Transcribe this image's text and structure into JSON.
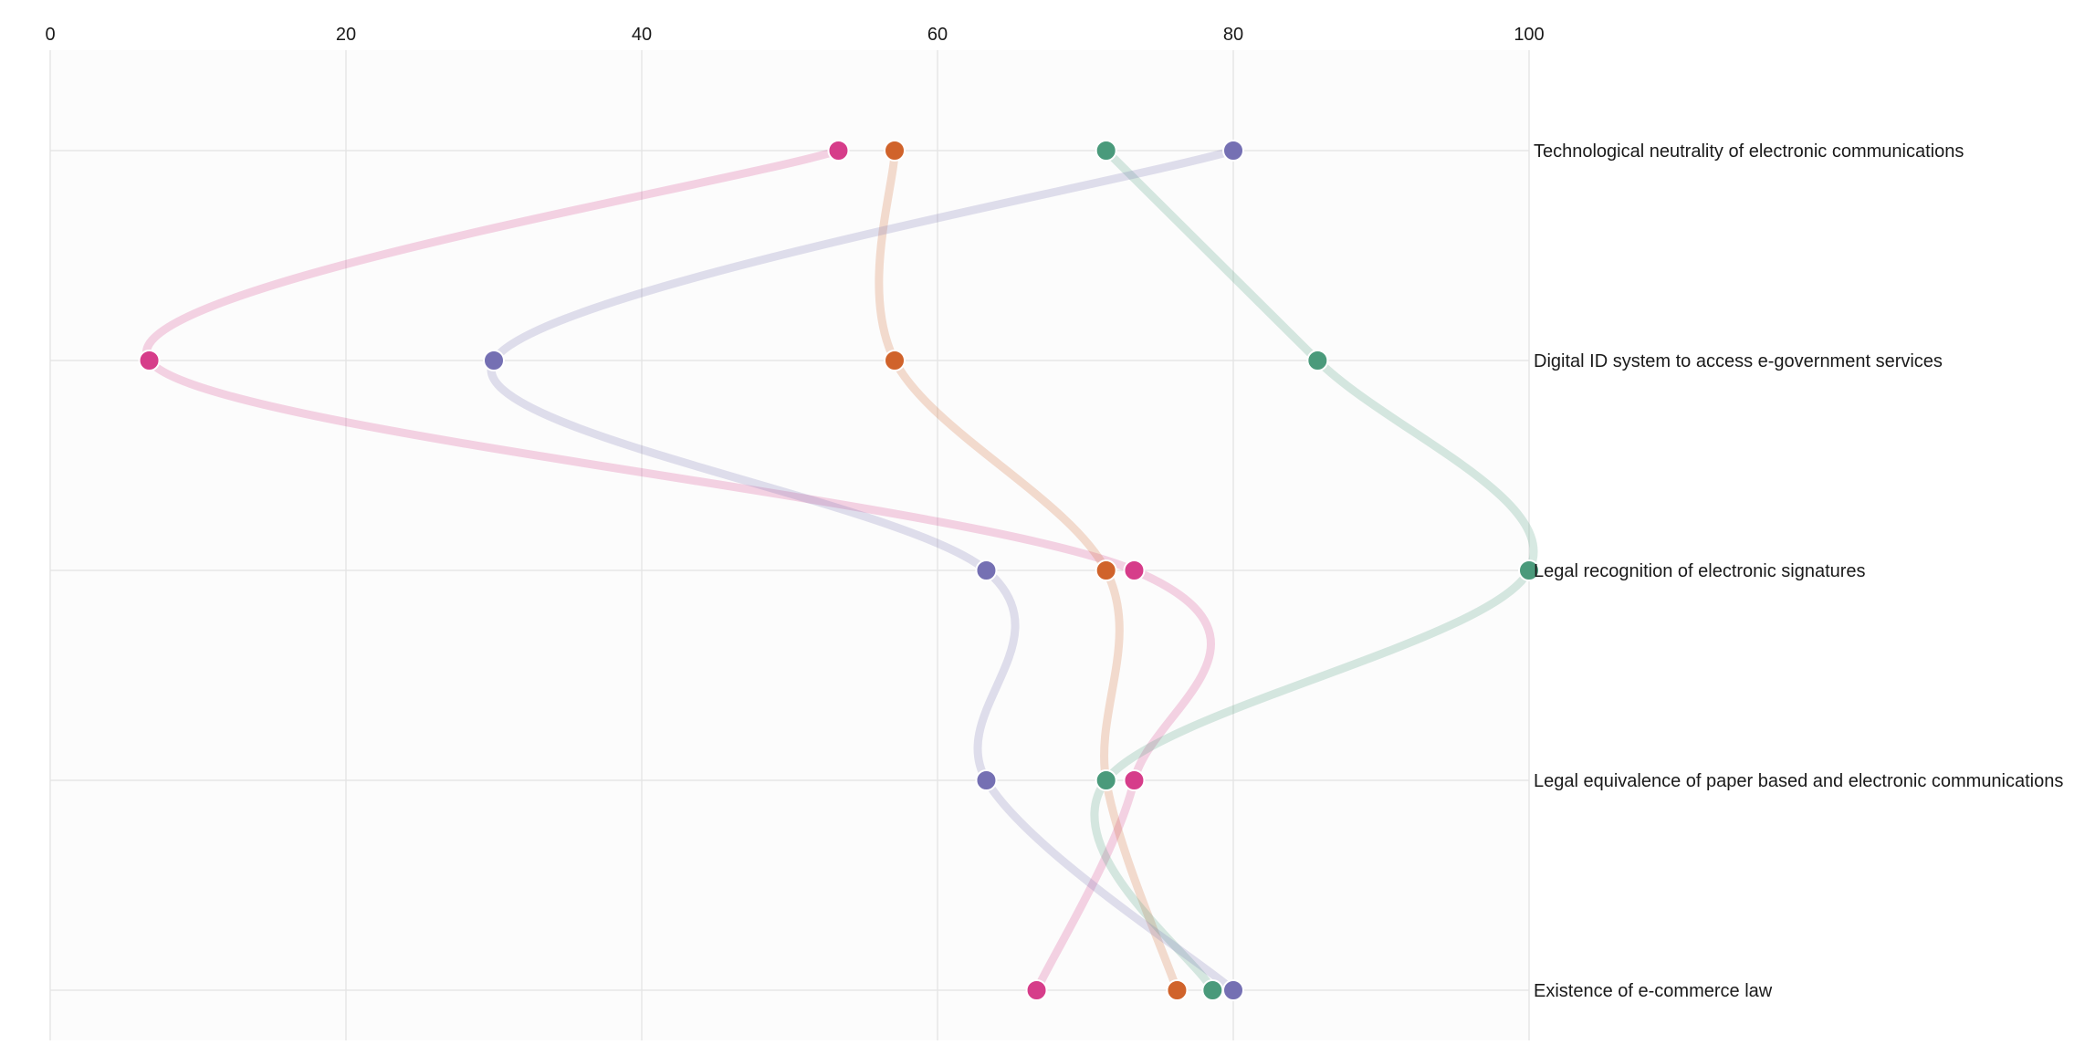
{
  "chart_data": {
    "type": "line",
    "title": "",
    "xlabel": "",
    "ylabel": "",
    "xlim": [
      0,
      100
    ],
    "x_ticks": [
      "0",
      "20",
      "40",
      "60",
      "80",
      "100"
    ],
    "categories": [
      "Technological neutrality of electronic communications",
      "Digital ID system to access e-government services",
      "Legal recognition of electronic signatures",
      "Legal equivalence of paper based and electronic communications",
      "Existence of e-commerce law"
    ],
    "series": [
      {
        "color": "#d63d8a",
        "values": [
          53.3,
          6.7,
          73.3,
          73.3,
          66.7
        ]
      },
      {
        "color": "#d0632b",
        "values": [
          57.1,
          57.1,
          71.4,
          71.4,
          76.2
        ]
      },
      {
        "color": "#4a9a7b",
        "values": [
          71.4,
          85.7,
          100,
          71.4,
          78.6
        ]
      },
      {
        "color": "#7570b3",
        "values": [
          80,
          30,
          63.3,
          63.3,
          80
        ]
      }
    ],
    "grid": true,
    "legend": "none"
  }
}
